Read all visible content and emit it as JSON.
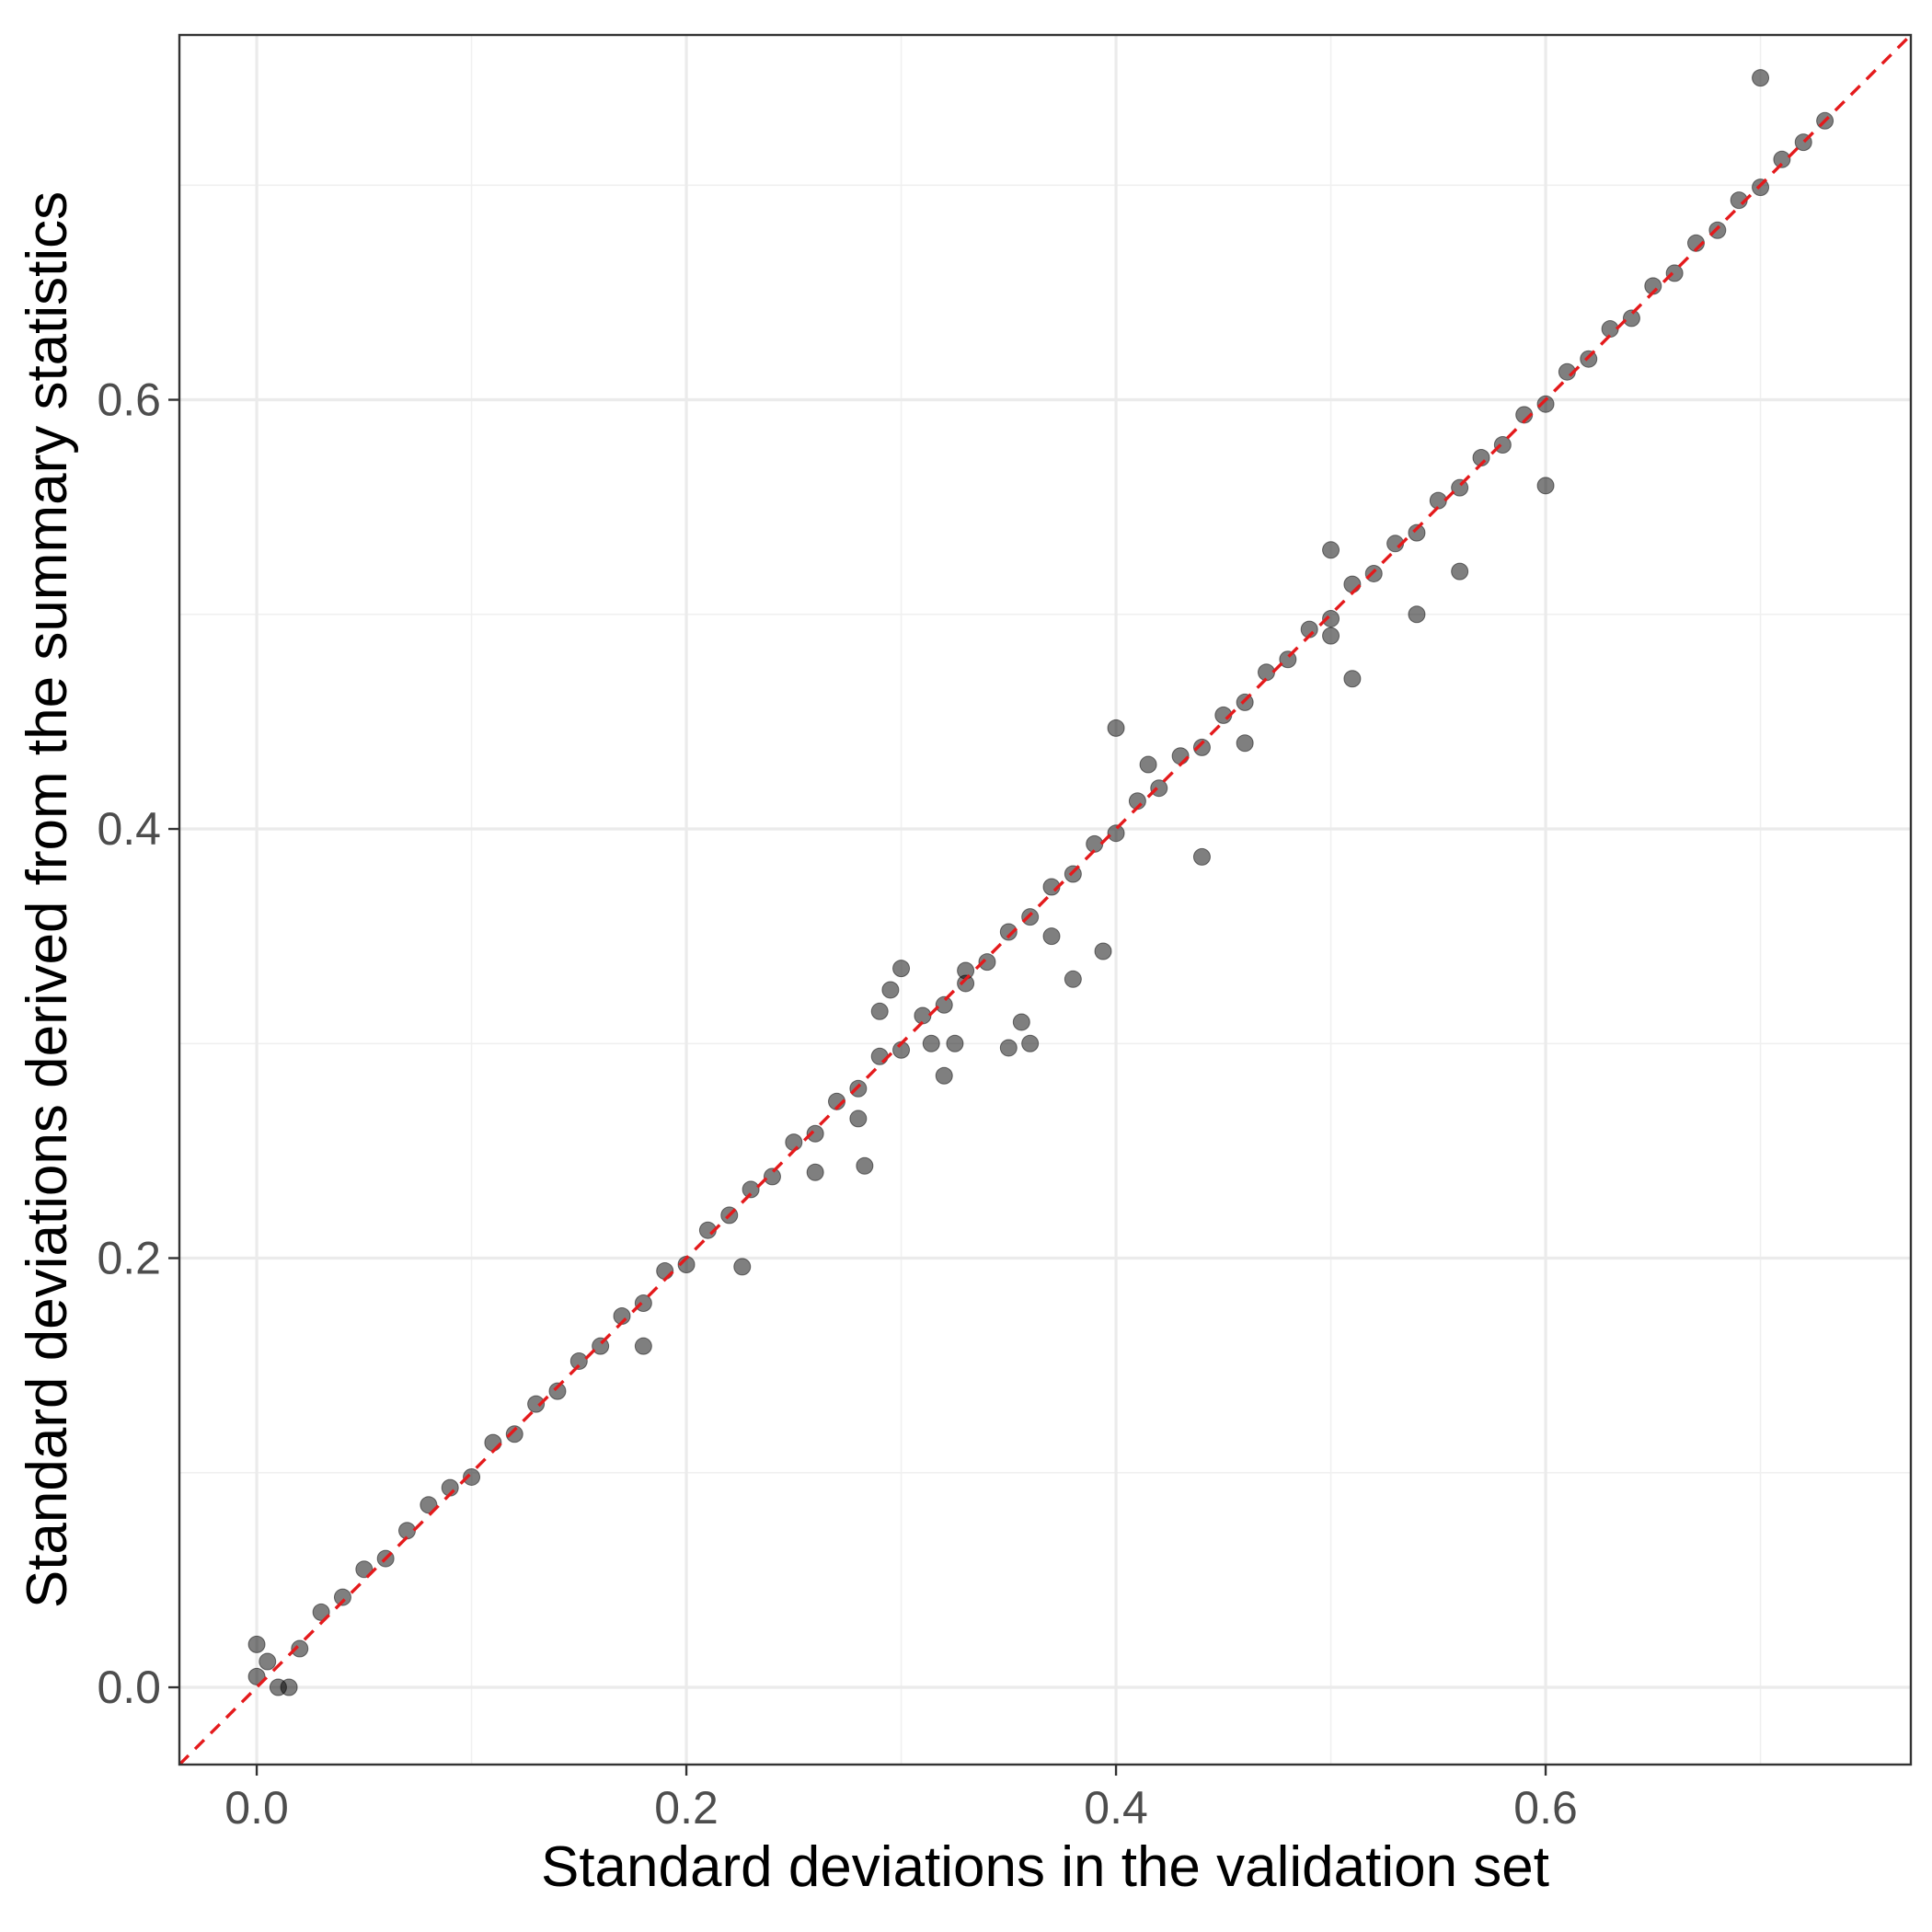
{
  "chart_data": {
    "type": "scatter",
    "title": "",
    "xlabel": "Standard deviations in the validation set",
    "ylabel": "Standard deviations derived from the summary statistics",
    "xlim": [
      -0.036,
      0.77
    ],
    "ylim": [
      -0.036,
      0.77
    ],
    "x_ticks": [
      0.0,
      0.2,
      0.4,
      0.6
    ],
    "x_tick_labels": [
      "0.0",
      "0.2",
      "0.4",
      "0.6"
    ],
    "y_ticks": [
      0.0,
      0.2,
      0.4,
      0.6
    ],
    "y_tick_labels": [
      "0.0",
      "0.2",
      "0.4",
      "0.6"
    ],
    "grid": true,
    "legend": "none",
    "reference_line": {
      "type": "identity",
      "slope": 1,
      "intercept": 0,
      "style": "dashed",
      "color": "#e41a1c"
    },
    "point_color": "#000000",
    "point_alpha": 0.5,
    "series": [
      {
        "points": [
          [
            0.0,
            0.005
          ],
          [
            0.005,
            0.012
          ],
          [
            0.01,
            0.0
          ],
          [
            0.02,
            0.018
          ],
          [
            0.03,
            0.035
          ],
          [
            0.04,
            0.042
          ],
          [
            0.05,
            0.055
          ],
          [
            0.06,
            0.06
          ],
          [
            0.07,
            0.073
          ],
          [
            0.08,
            0.085
          ],
          [
            0.09,
            0.093
          ],
          [
            0.1,
            0.098
          ],
          [
            0.11,
            0.114
          ],
          [
            0.12,
            0.118
          ],
          [
            0.13,
            0.132
          ],
          [
            0.14,
            0.138
          ],
          [
            0.15,
            0.152
          ],
          [
            0.16,
            0.159
          ],
          [
            0.17,
            0.173
          ],
          [
            0.18,
            0.179
          ],
          [
            0.19,
            0.194
          ],
          [
            0.2,
            0.197
          ],
          [
            0.21,
            0.213
          ],
          [
            0.22,
            0.22
          ],
          [
            0.23,
            0.232
          ],
          [
            0.24,
            0.238
          ],
          [
            0.25,
            0.254
          ],
          [
            0.26,
            0.258
          ],
          [
            0.27,
            0.273
          ],
          [
            0.28,
            0.279
          ],
          [
            0.29,
            0.294
          ],
          [
            0.3,
            0.297
          ],
          [
            0.31,
            0.313
          ],
          [
            0.32,
            0.318
          ],
          [
            0.33,
            0.334
          ],
          [
            0.34,
            0.338
          ],
          [
            0.35,
            0.352
          ],
          [
            0.36,
            0.359
          ],
          [
            0.37,
            0.373
          ],
          [
            0.38,
            0.379
          ],
          [
            0.39,
            0.393
          ],
          [
            0.4,
            0.398
          ],
          [
            0.41,
            0.413
          ],
          [
            0.42,
            0.419
          ],
          [
            0.43,
            0.434
          ],
          [
            0.44,
            0.438
          ],
          [
            0.45,
            0.453
          ],
          [
            0.46,
            0.459
          ],
          [
            0.47,
            0.473
          ],
          [
            0.48,
            0.479
          ],
          [
            0.49,
            0.493
          ],
          [
            0.5,
            0.498
          ],
          [
            0.51,
            0.514
          ],
          [
            0.52,
            0.519
          ],
          [
            0.53,
            0.533
          ],
          [
            0.54,
            0.538
          ],
          [
            0.55,
            0.553
          ],
          [
            0.56,
            0.559
          ],
          [
            0.57,
            0.573
          ],
          [
            0.58,
            0.579
          ],
          [
            0.59,
            0.593
          ],
          [
            0.6,
            0.598
          ],
          [
            0.61,
            0.613
          ],
          [
            0.62,
            0.619
          ],
          [
            0.63,
            0.633
          ],
          [
            0.64,
            0.638
          ],
          [
            0.65,
            0.653
          ],
          [
            0.66,
            0.659
          ],
          [
            0.67,
            0.673
          ],
          [
            0.68,
            0.679
          ],
          [
            0.69,
            0.693
          ],
          [
            0.7,
            0.699
          ],
          [
            0.71,
            0.712
          ],
          [
            0.72,
            0.72
          ],
          [
            0.73,
            0.73
          ],
          [
            0.0,
            0.02
          ],
          [
            0.015,
            0.0
          ],
          [
            0.18,
            0.159
          ],
          [
            0.226,
            0.196
          ],
          [
            0.26,
            0.24
          ],
          [
            0.28,
            0.265
          ],
          [
            0.283,
            0.243
          ],
          [
            0.29,
            0.315
          ],
          [
            0.295,
            0.325
          ],
          [
            0.3,
            0.335
          ],
          [
            0.314,
            0.3
          ],
          [
            0.32,
            0.285
          ],
          [
            0.325,
            0.3
          ],
          [
            0.33,
            0.328
          ],
          [
            0.35,
            0.298
          ],
          [
            0.356,
            0.31
          ],
          [
            0.36,
            0.3
          ],
          [
            0.37,
            0.35
          ],
          [
            0.38,
            0.33
          ],
          [
            0.394,
            0.343
          ],
          [
            0.4,
            0.447
          ],
          [
            0.415,
            0.43
          ],
          [
            0.44,
            0.387
          ],
          [
            0.46,
            0.44
          ],
          [
            0.5,
            0.49
          ],
          [
            0.5,
            0.53
          ],
          [
            0.51,
            0.47
          ],
          [
            0.54,
            0.5
          ],
          [
            0.56,
            0.52
          ],
          [
            0.6,
            0.56
          ],
          [
            0.7,
            0.75
          ]
        ]
      }
    ]
  }
}
